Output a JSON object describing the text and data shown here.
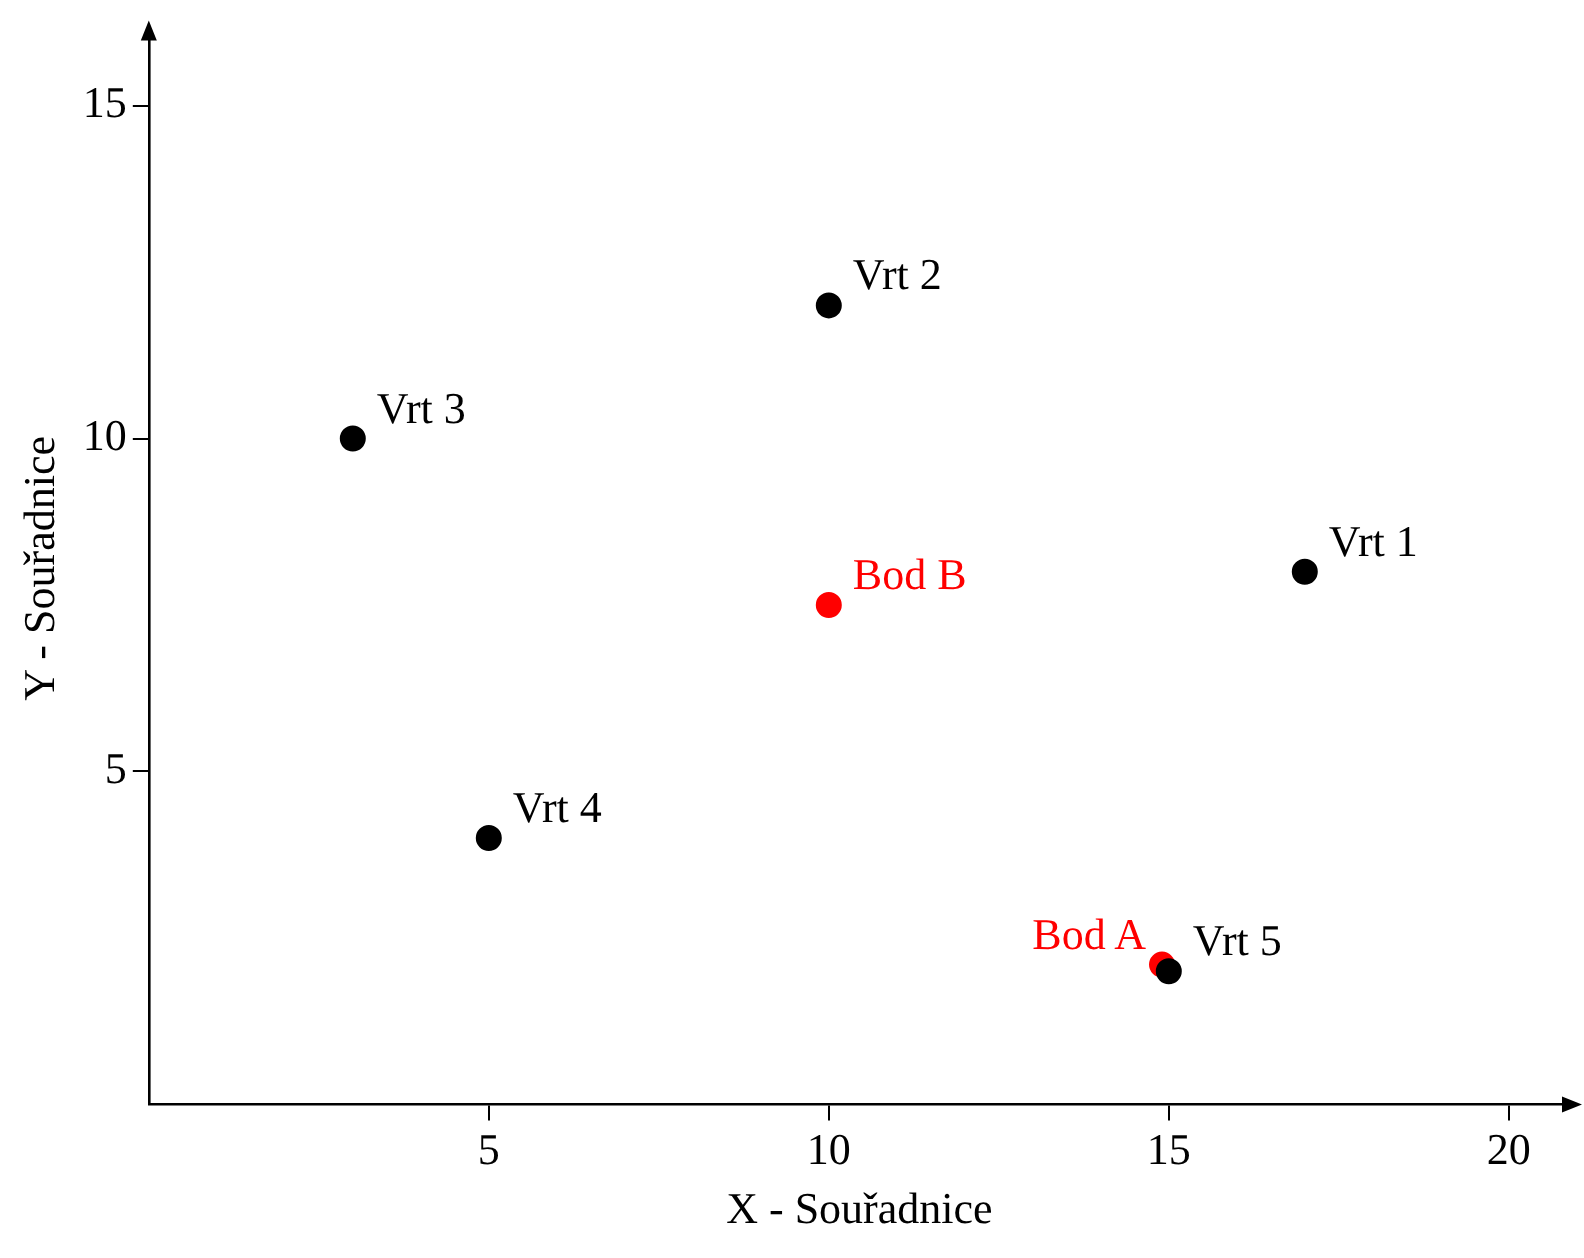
{
  "chart_data": {
    "type": "scatter",
    "xlabel": "X - Souřadnice",
    "ylabel": "Y - Souřadnice",
    "series": [
      {
        "color": "#000000",
        "x": [
          17,
          10,
          3,
          5,
          15
        ],
        "values": [
          8,
          12,
          10,
          4,
          2
        ]
      },
      {
        "color": "#ff0000",
        "x": [
          14.9,
          10
        ],
        "values": [
          2.1,
          7.5
        ]
      }
    ],
    "annotations": [
      {
        "text": "Vrt 1",
        "x": 17,
        "y": 8
      },
      {
        "text": "Vrt 2",
        "x": 10,
        "y": 12
      },
      {
        "text": "Vrt 3",
        "x": 3,
        "y": 10
      },
      {
        "text": "Vrt 4",
        "x": 5,
        "y": 4
      },
      {
        "text": "Vrt 5",
        "x": 15,
        "y": 2
      },
      {
        "text": "Bod A",
        "x": 14.9,
        "y": 2.1
      },
      {
        "text": "Bod B",
        "x": 10,
        "y": 7.5
      }
    ],
    "xlim": [
      0,
      20.9
    ],
    "ylim": [
      0,
      16.1
    ],
    "xticks": [
      5,
      10,
      15,
      20
    ],
    "yticks": [
      5,
      10,
      15
    ],
    "grid": false,
    "legend": false,
    "marker": "circle"
  }
}
